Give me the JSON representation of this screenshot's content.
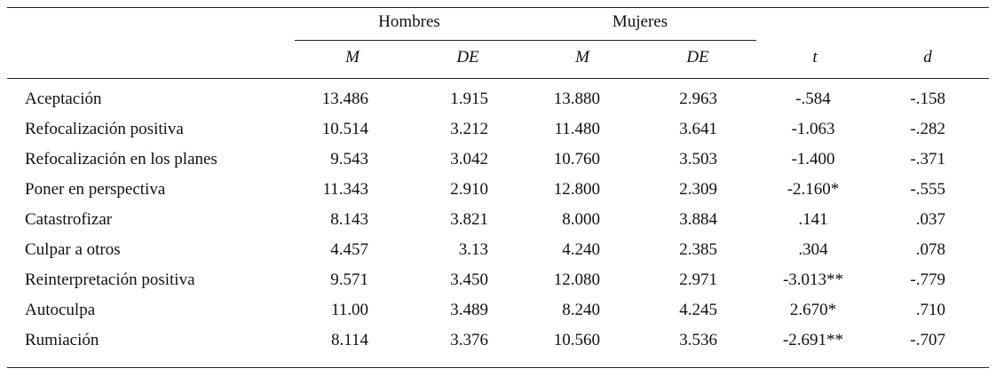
{
  "table": {
    "groups": [
      "Hombres",
      "Mujeres"
    ],
    "subheaders": [
      "M",
      "DE",
      "M",
      "DE",
      "t",
      "d"
    ],
    "rows": [
      [
        "Aceptación",
        "13.486",
        "1.915",
        "13.880",
        "2.963",
        "-.584",
        "-.158"
      ],
      [
        "Refocalización positiva",
        "10.514",
        "3.212",
        "11.480",
        "3.641",
        "-1.063",
        "-.282"
      ],
      [
        "Refocalización en los planes",
        "9.543",
        "3.042",
        "10.760",
        "3.503",
        "-1.400",
        "-.371"
      ],
      [
        "Poner en perspectiva",
        "11.343",
        "2.910",
        "12.800",
        "2.309",
        "-2.160*",
        "-.555"
      ],
      [
        "Catastrofizar",
        "8.143",
        "3.821",
        "8.000",
        "3.884",
        ".141",
        ".037"
      ],
      [
        "Culpar a otros",
        "4.457",
        "3.13",
        "4.240",
        "2.385",
        ".304",
        ".078"
      ],
      [
        "Reinterpretación positiva",
        "9.571",
        "3.450",
        "12.080",
        "2.971",
        "-3.013**",
        "-.779"
      ],
      [
        "Autoculpa",
        "11.00",
        "3.489",
        "8.240",
        "4.245",
        "2.670*",
        ".710"
      ],
      [
        "Rumiación",
        "8.114",
        "3.376",
        "10.560",
        "3.536",
        "-2.691**",
        "-.707"
      ]
    ]
  }
}
